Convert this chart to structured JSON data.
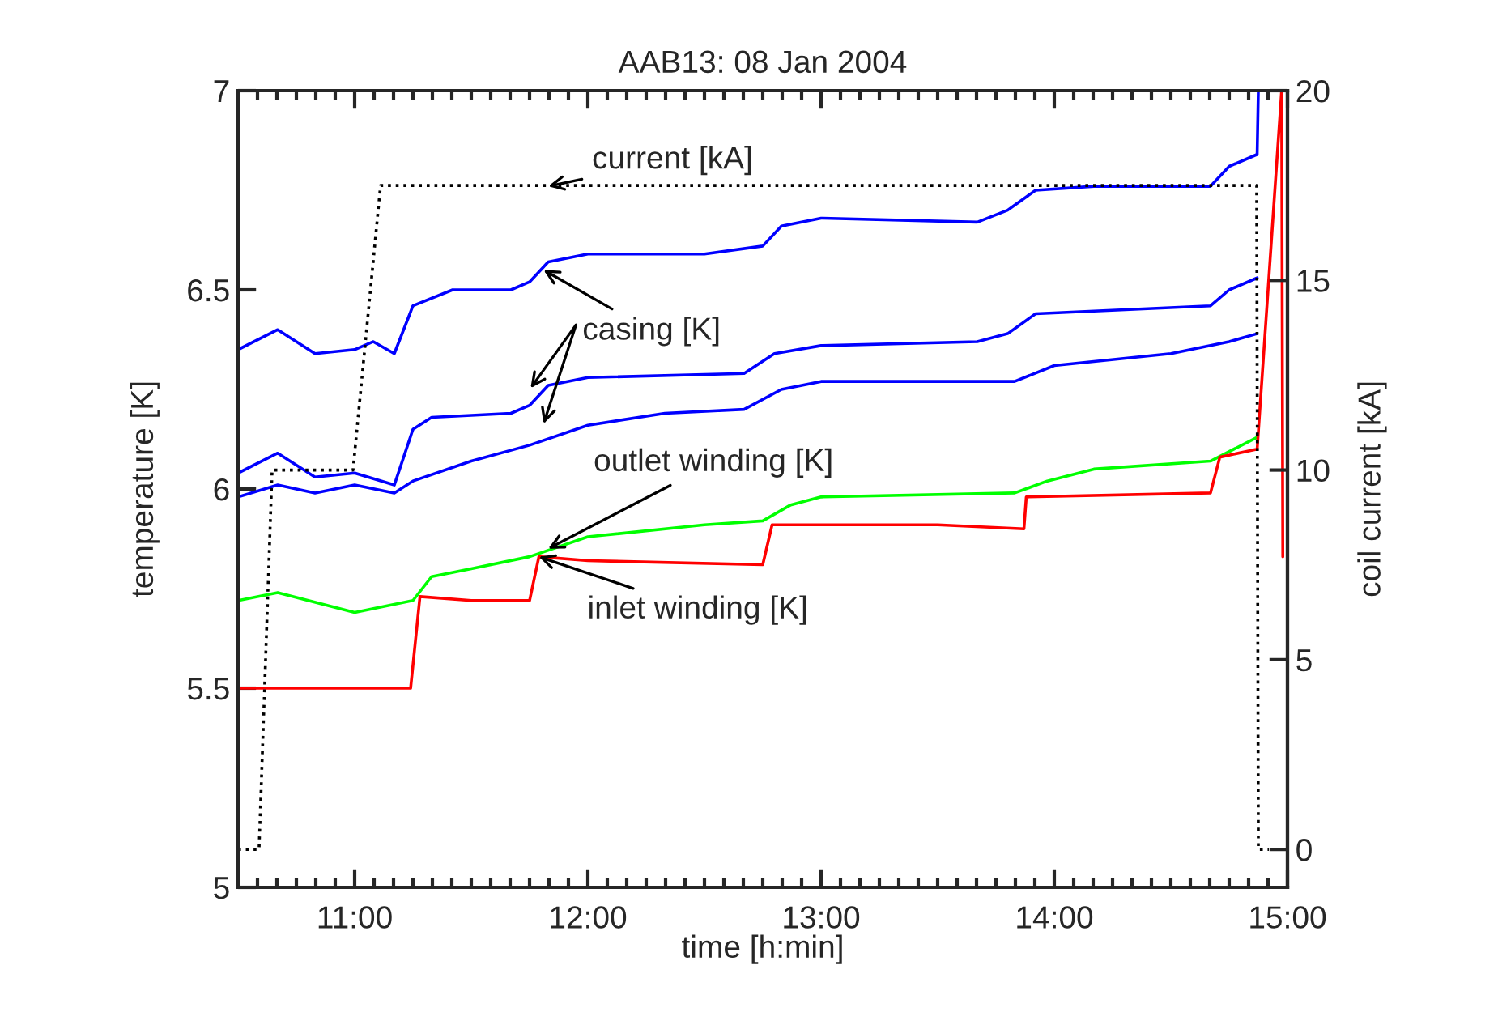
{
  "chart_data": {
    "type": "line",
    "title": "AAB13: 08 Jan 2004",
    "xlabel": "time [h:min]",
    "ylabel": "temperature [K]",
    "y2label": "coil current [kA]",
    "xlim": [
      10.5,
      15
    ],
    "xticks": [
      {
        "value": 10.5,
        "label": null
      },
      {
        "value": 11,
        "label": "11:00"
      },
      {
        "value": 12,
        "label": "12:00"
      },
      {
        "value": 13,
        "label": "13:00"
      },
      {
        "value": 14,
        "label": "14:00"
      },
      {
        "value": 15,
        "label": "15:00"
      }
    ],
    "ylim": [
      5,
      7
    ],
    "yticks": [
      5,
      5.5,
      6,
      6.5,
      7
    ],
    "y2lim": [
      -1,
      20
    ],
    "y2ticks": [
      0,
      5,
      10,
      15,
      20
    ],
    "grid": false,
    "marker": "none",
    "series": [
      {
        "color": "#0000ff",
        "line_style": "solid",
        "x": [
          10.5,
          10.67,
          10.83,
          11.0,
          11.08,
          11.17,
          11.25,
          11.42,
          11.67,
          11.75,
          11.83,
          12.0,
          12.5,
          12.75,
          12.83,
          13.0,
          13.67,
          13.8,
          13.92,
          14.17,
          14.67,
          14.75,
          14.87,
          14.875
        ],
        "values": [
          6.35,
          6.4,
          6.34,
          6.35,
          6.37,
          6.34,
          6.46,
          6.5,
          6.5,
          6.52,
          6.57,
          6.59,
          6.59,
          6.61,
          6.66,
          6.68,
          6.67,
          6.7,
          6.75,
          6.76,
          6.76,
          6.81,
          6.84,
          7.0
        ]
      },
      {
        "color": "#0000ff",
        "line_style": "solid",
        "x": [
          10.5,
          10.67,
          10.83,
          11.0,
          11.17,
          11.25,
          11.33,
          11.67,
          11.75,
          11.83,
          12.0,
          12.67,
          12.8,
          13.0,
          13.67,
          13.8,
          13.92,
          14.67,
          14.75,
          14.87
        ],
        "values": [
          6.04,
          6.09,
          6.03,
          6.04,
          6.01,
          6.15,
          6.18,
          6.19,
          6.21,
          6.26,
          6.28,
          6.29,
          6.34,
          6.36,
          6.37,
          6.39,
          6.44,
          6.46,
          6.5,
          6.53
        ]
      },
      {
        "color": "#0000ff",
        "line_style": "solid",
        "x": [
          10.5,
          10.67,
          10.83,
          11.0,
          11.17,
          11.25,
          11.5,
          11.75,
          12.0,
          12.33,
          12.67,
          12.83,
          13.0,
          13.83,
          14.0,
          14.5,
          14.75,
          14.87
        ],
        "values": [
          5.98,
          6.01,
          5.99,
          6.01,
          5.99,
          6.02,
          6.07,
          6.11,
          6.16,
          6.19,
          6.2,
          6.25,
          6.27,
          6.27,
          6.31,
          6.34,
          6.37,
          6.39
        ]
      },
      {
        "color": "#00ff00",
        "line_style": "solid",
        "x": [
          10.5,
          10.67,
          11.0,
          11.25,
          11.33,
          11.5,
          11.75,
          12.0,
          12.5,
          12.75,
          12.87,
          13.0,
          13.83,
          13.97,
          14.17,
          14.67,
          14.87
        ],
        "values": [
          5.72,
          5.74,
          5.69,
          5.72,
          5.78,
          5.8,
          5.83,
          5.88,
          5.91,
          5.92,
          5.96,
          5.98,
          5.99,
          6.02,
          6.05,
          6.07,
          6.13
        ]
      },
      {
        "color": "#ff0000",
        "line_style": "solid",
        "x": [
          10.5,
          11.24,
          11.28,
          11.5,
          11.75,
          11.79,
          12.0,
          12.75,
          12.79,
          13.5,
          13.87,
          13.88,
          14.67,
          14.71,
          14.87,
          14.975,
          14.98
        ],
        "values": [
          5.5,
          5.5,
          5.73,
          5.72,
          5.72,
          5.83,
          5.82,
          5.81,
          5.91,
          5.91,
          5.9,
          5.98,
          5.99,
          6.08,
          6.1,
          7.0,
          5.83
        ]
      },
      {
        "color": "#000000",
        "line_style": "dotted",
        "axis": "y2",
        "x": [
          10.5,
          10.59,
          10.646,
          10.993,
          11.111,
          14.868,
          14.875,
          14.92
        ],
        "values": [
          0,
          0,
          10,
          10,
          17.5,
          17.5,
          0,
          0
        ]
      }
    ],
    "annotations": [
      {
        "text": "current [kA]",
        "x": 11.83,
        "y": 6.76
      },
      {
        "text": "casing [K]",
        "x": 11.81,
        "y": 6.55
      },
      {
        "text": "outlet winding [K]",
        "x": 11.83,
        "y": 5.85
      },
      {
        "text": "inlet winding [K]",
        "x": 11.79,
        "y": 5.83
      }
    ]
  }
}
